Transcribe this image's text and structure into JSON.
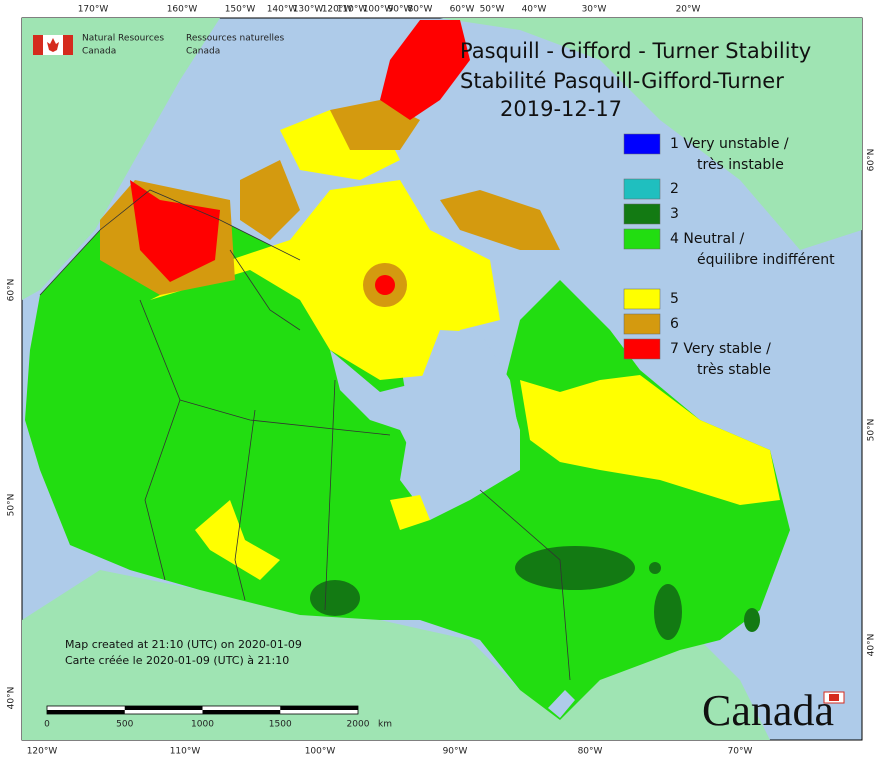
{
  "header": {
    "org_en_line1": "Natural Resources",
    "org_en_line2": "Canada",
    "org_fr_line1": "Ressources naturelles",
    "org_fr_line2": "Canada"
  },
  "title": {
    "line1": "Pasquill - Gifford - Turner Stability",
    "line2": "Stabilité Pasquill-Gifford-Turner",
    "date": "2019-12-17"
  },
  "legend": {
    "items": [
      {
        "label": "1 Very unstable /",
        "label2": "très instable",
        "color": "#0000ff"
      },
      {
        "label": "2",
        "color": "#1fbfbf"
      },
      {
        "label": "3",
        "color": "#137a13"
      },
      {
        "label": "4 Neutral /",
        "label2": "équilibre indifférent",
        "color": "#22dd11"
      },
      {
        "label": "5",
        "color": "#ffff00"
      },
      {
        "label": "6",
        "color": "#d49a0f"
      },
      {
        "label": "7 Very stable /",
        "label2": "très stable",
        "color": "#ff0000"
      }
    ]
  },
  "credits": {
    "line1": "Map created at 21:10 (UTC) on 2020-01-09",
    "line2": "Carte créée le 2020-01-09 (UTC) à 21:10"
  },
  "scale_bar": {
    "labels": [
      "0",
      "500",
      "1000",
      "1500",
      "2000"
    ],
    "unit": "km"
  },
  "graticule": {
    "top": [
      "170°W",
      "160°W",
      "150°W",
      "140°W",
      "130°W",
      "120°W",
      "110°W",
      "100°W",
      "90°W",
      "80°W",
      "60°W",
      "50°W",
      "40°W",
      "30°W",
      "20°W"
    ],
    "bottom": [
      "120°W",
      "110°W",
      "100°W",
      "90°W",
      "80°W",
      "70°W"
    ],
    "left": [
      "60°N",
      "50°N",
      "40°N"
    ],
    "right": [
      "60°N",
      "50°N",
      "40°N"
    ]
  },
  "wordmark": "Canada"
}
